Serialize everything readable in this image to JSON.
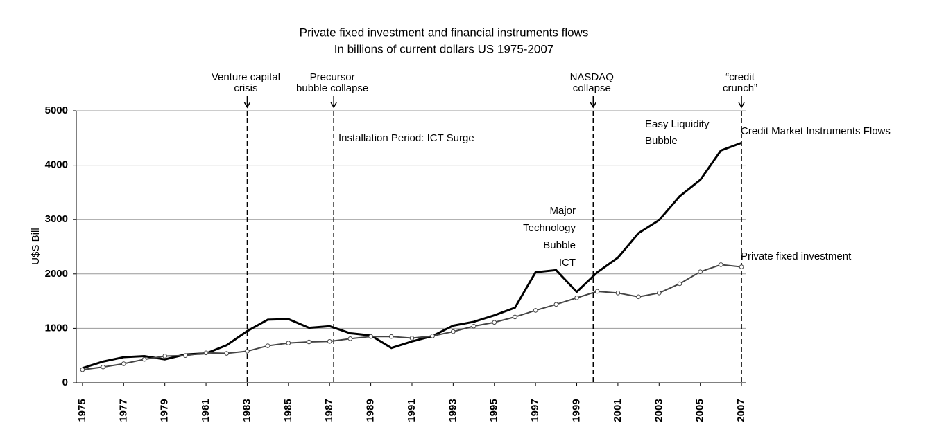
{
  "chart_data": {
    "type": "line",
    "title": "Private fixed investment and financial instruments flows",
    "subtitle": "In billions of current dollars US 1975-2007",
    "ylabel": "U$S Bill",
    "x": [
      1975,
      1976,
      1977,
      1978,
      1979,
      1980,
      1981,
      1982,
      1983,
      1984,
      1985,
      1986,
      1987,
      1988,
      1989,
      1990,
      1991,
      1992,
      1993,
      1994,
      1995,
      1996,
      1997,
      1998,
      1999,
      2000,
      2001,
      2002,
      2003,
      2004,
      2005,
      2006,
      2007
    ],
    "series": [
      {
        "name": "Credit Market Instruments Flows",
        "color": "#000000",
        "values": [
          270,
          390,
          470,
          490,
          430,
          520,
          540,
          690,
          950,
          1160,
          1170,
          1010,
          1040,
          910,
          870,
          640,
          760,
          860,
          1050,
          1120,
          1240,
          1380,
          2030,
          2070,
          1670,
          2030,
          2300,
          2750,
          2990,
          3430,
          3730,
          4270,
          4410
        ]
      },
      {
        "name": "Private fixed investment",
        "color": "#444444",
        "values": [
          240,
          290,
          350,
          430,
          490,
          500,
          550,
          540,
          580,
          680,
          730,
          750,
          760,
          810,
          850,
          850,
          820,
          860,
          940,
          1040,
          1110,
          1210,
          1330,
          1440,
          1560,
          1680,
          1650,
          1580,
          1650,
          1820,
          2040,
          2170,
          2130
        ]
      }
    ],
    "xlim": [
      1974.7,
      2007.2
    ],
    "xticks": [
      1975,
      1977,
      1979,
      1981,
      1983,
      1985,
      1987,
      1989,
      1991,
      1993,
      1995,
      1997,
      1999,
      2001,
      2003,
      2005,
      2007
    ],
    "ylim": [
      0,
      5000
    ],
    "yticks": [
      0,
      1000,
      2000,
      3000,
      4000,
      5000
    ],
    "grid": true,
    "events": [
      {
        "x": 1983,
        "label": [
          "Venture capital",
          "crisis"
        ]
      },
      {
        "x": 1987.2,
        "label": [
          "Precursor",
          "bubble collapse"
        ]
      },
      {
        "x": 1999.8,
        "label": [
          "NASDAQ",
          "collapse"
        ]
      },
      {
        "x": 2007,
        "label": [
          "“credit",
          "crunch”"
        ]
      }
    ],
    "annotations": [
      [
        "Installation Period: ICT Surge"
      ],
      [
        "Major",
        "Technology",
        "Bubble",
        "ICT"
      ],
      [
        "Easy Liquidity",
        "Bubble"
      ]
    ]
  }
}
